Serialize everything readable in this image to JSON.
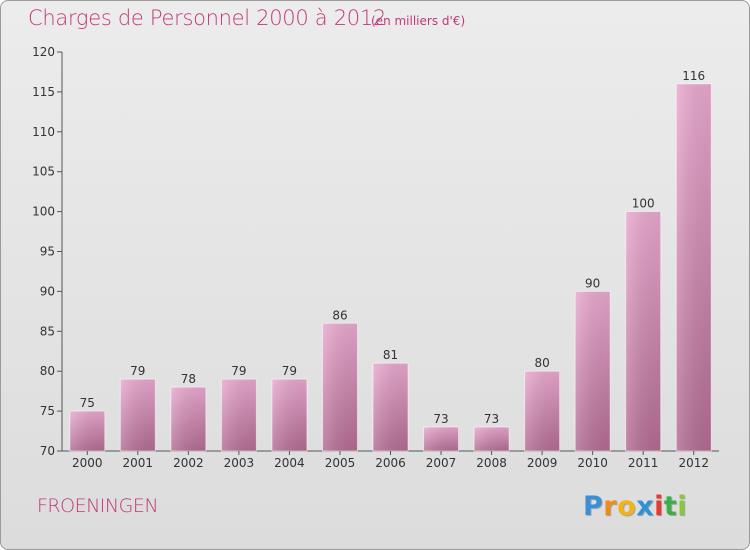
{
  "header": {
    "title": "Charges de Personnel 2000 à 2012",
    "subtitle": "(en milliers d'€)"
  },
  "footer": {
    "commune": "FROENINGEN",
    "logo_text": "Proxiti",
    "logo_letters": [
      "P",
      "r",
      "o",
      "x",
      "i",
      "t",
      "i"
    ],
    "logo_colors": [
      "#3b8fd6",
      "#f08a1c",
      "#f2b21a",
      "#2c93d8",
      "#e83a2f",
      "#3fae49",
      "#8bc53f"
    ]
  },
  "chart_data": {
    "type": "bar",
    "categories": [
      "2000",
      "2001",
      "2002",
      "2003",
      "2004",
      "2005",
      "2006",
      "2007",
      "2008",
      "2009",
      "2010",
      "2011",
      "2012"
    ],
    "values": [
      75,
      79,
      78,
      79,
      79,
      86,
      81,
      73,
      73,
      80,
      90,
      100,
      116
    ],
    "ylim": [
      70,
      120
    ],
    "yticks": [
      70,
      75,
      80,
      85,
      90,
      95,
      100,
      105,
      110,
      115,
      120
    ],
    "grid": false,
    "legend": "none",
    "colors": {
      "bar_top": "#e9a8cf",
      "bar_bottom": "#b26b92",
      "axis": "#555555",
      "label": "#333333"
    }
  }
}
